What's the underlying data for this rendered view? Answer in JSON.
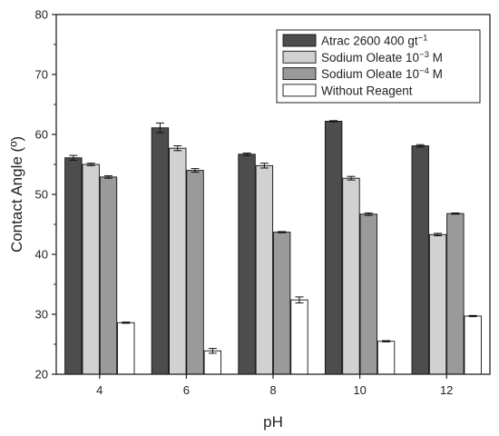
{
  "chart_data": {
    "type": "bar",
    "xlabel": "pH",
    "ylabel": "Contact Angle (º)",
    "categories": [
      "4",
      "6",
      "8",
      "10",
      "12"
    ],
    "ylim": [
      20,
      80
    ],
    "yticks": [
      "20",
      "30",
      "40",
      "50",
      "60",
      "70",
      "80"
    ],
    "y_minor_ticks": true,
    "grid": false,
    "legend_position": "top-right",
    "series": [
      {
        "name": "Atrac 2600 400 gt",
        "name_sup": "−1",
        "name_suffix": "",
        "color": "#4d4d4d",
        "values": [
          56.1,
          61.1,
          56.7,
          62.2,
          58.1
        ],
        "errors": [
          0.4,
          0.8,
          0.2,
          0.1,
          0.2
        ]
      },
      {
        "name": "Sodium Oleate 10",
        "name_sup": "−3",
        "name_suffix": " M",
        "color": "#d1d1d1",
        "values": [
          55.0,
          57.7,
          54.8,
          52.7,
          43.3
        ],
        "errors": [
          0.2,
          0.4,
          0.4,
          0.3,
          0.2
        ]
      },
      {
        "name": "Sodium Oleate 10",
        "name_sup": "−4",
        "name_suffix": " M",
        "color": "#9a9a9a",
        "values": [
          52.9,
          54.0,
          43.7,
          46.7,
          46.8
        ],
        "errors": [
          0.2,
          0.3,
          0.1,
          0.2,
          0.1
        ]
      },
      {
        "name": "Without Reagent",
        "name_sup": "",
        "name_suffix": "",
        "color": "#ffffff",
        "values": [
          28.6,
          23.9,
          32.4,
          25.5,
          29.7
        ],
        "errors": [
          0.1,
          0.4,
          0.5,
          0.1,
          0.1
        ]
      }
    ]
  }
}
